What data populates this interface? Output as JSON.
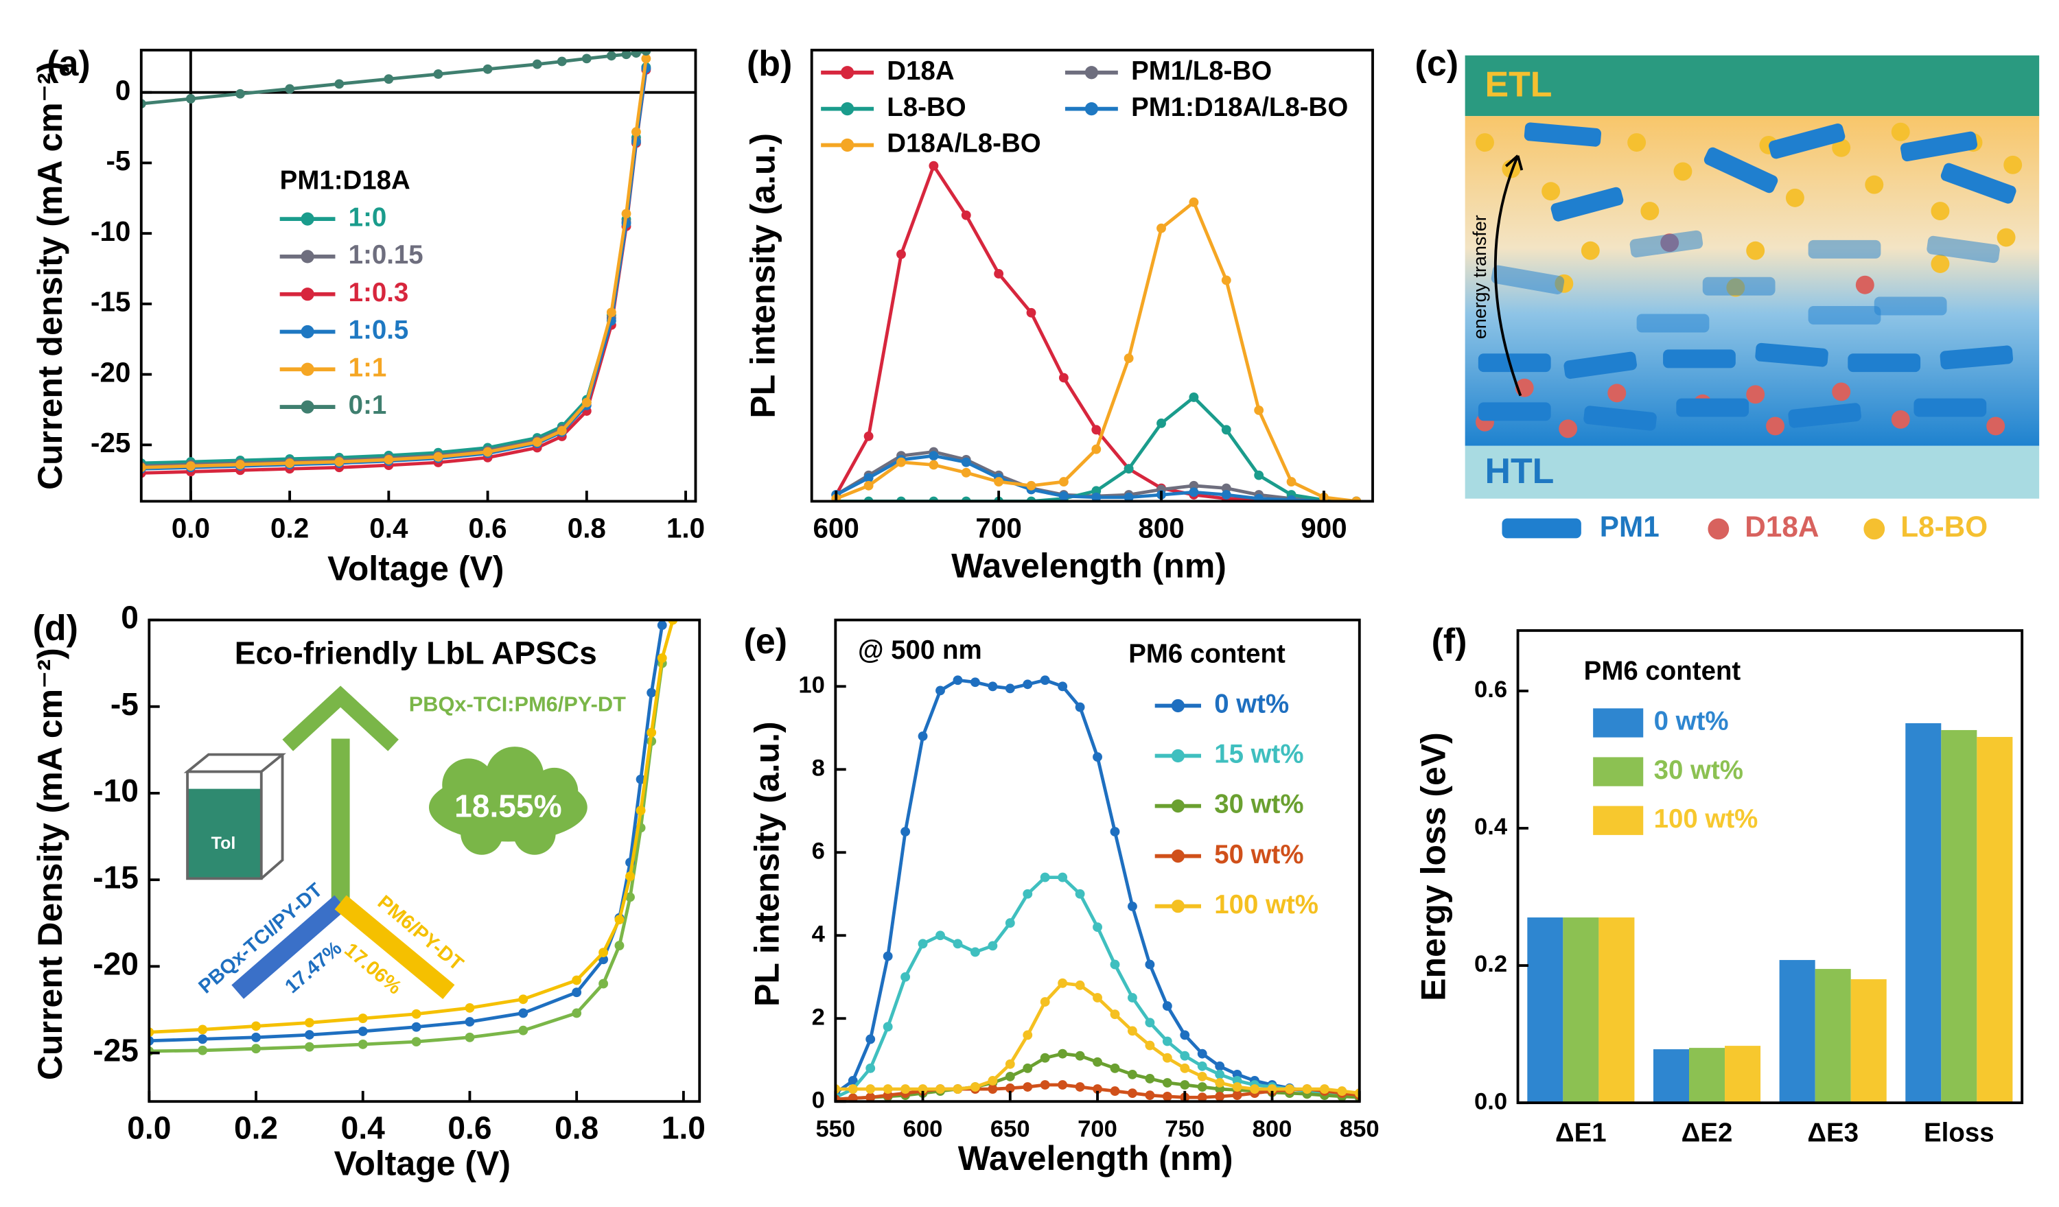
{
  "chart_data": [
    {
      "type": "line",
      "label": "(a)",
      "x_label": "Voltage (V)",
      "y_label": "Current density (mA cm⁻²)",
      "xlim": [
        -0.1,
        1.02
      ],
      "ylim": [
        -29,
        3
      ],
      "xticks": [
        {
          "value": 0,
          "label": "0.0"
        },
        0.2,
        0.4,
        0.6,
        0.8,
        {
          "value": 1,
          "label": "1.0"
        }
      ],
      "yticks": [
        0,
        -5,
        -10,
        -15,
        -20,
        -25
      ],
      "zero_lines": true,
      "legend_title": "PM1:D18A",
      "x": [
        -0.1,
        0,
        0.1,
        0.2,
        0.3,
        0.4,
        0.5,
        0.6,
        0.7,
        0.75,
        0.8,
        0.85,
        0.88,
        0.9,
        0.92
      ],
      "series": [
        {
          "name": "1:0",
          "color": "#1a9c8c",
          "values": [
            -26.3,
            -26.2,
            -26.1,
            -26.0,
            -25.9,
            -25.75,
            -25.55,
            -25.2,
            -24.5,
            -23.7,
            -21.8,
            -15.8,
            -9.0,
            -3.2,
            1.8
          ]
        },
        {
          "name": "1:0.15",
          "color": "#6e6e7e",
          "values": [
            -26.5,
            -26.4,
            -26.3,
            -26.2,
            -26.1,
            -25.95,
            -25.75,
            -25.4,
            -24.7,
            -23.9,
            -22.0,
            -16.0,
            -9.2,
            -3.4,
            1.7
          ]
        },
        {
          "name": "1:0.3",
          "color": "#d7263d",
          "values": [
            -27.0,
            -26.9,
            -26.8,
            -26.7,
            -26.6,
            -26.45,
            -26.25,
            -25.9,
            -25.2,
            -24.4,
            -22.6,
            -16.5,
            -9.5,
            -3.6,
            1.6
          ]
        },
        {
          "name": "1:0.5",
          "color": "#1e78c2",
          "values": [
            -26.7,
            -26.6,
            -26.5,
            -26.4,
            -26.3,
            -26.15,
            -25.95,
            -25.6,
            -24.9,
            -24.1,
            -22.2,
            -16.2,
            -9.3,
            -3.5,
            1.7
          ]
        },
        {
          "name": "1:1",
          "color": "#f5a623",
          "values": [
            -26.6,
            -26.5,
            -26.4,
            -26.3,
            -26.2,
            -26.05,
            -25.85,
            -25.5,
            -24.8,
            -24.0,
            -22.0,
            -15.6,
            -8.6,
            -2.8,
            2.4
          ]
        },
        {
          "name": "0:1",
          "color": "#3f7f6f",
          "values": [
            -0.8,
            -0.45,
            -0.1,
            0.25,
            0.6,
            0.95,
            1.3,
            1.65,
            2.0,
            2.2,
            2.4,
            2.6,
            2.7,
            2.8,
            2.95
          ]
        }
      ]
    },
    {
      "type": "line",
      "label": "(b)",
      "x_label": "Wavelength (nm)",
      "y_label": "PL intensity (a.u.)",
      "xlim": [
        585,
        930
      ],
      "ylim": [
        0,
        3.47
      ],
      "xticks": [
        600,
        700,
        800,
        900
      ],
      "x": [
        600,
        620,
        640,
        660,
        680,
        700,
        720,
        740,
        760,
        780,
        800,
        820,
        840,
        860,
        880,
        900,
        920
      ],
      "series": [
        {
          "name": "D18A",
          "color": "#d7263d",
          "values": [
            0.05,
            0.5,
            1.9,
            2.58,
            2.2,
            1.75,
            1.45,
            0.95,
            0.55,
            0.25,
            0.1,
            0.05,
            0.02,
            0.01,
            0,
            0,
            0
          ]
        },
        {
          "name": "PM1/L8-BO",
          "color": "#6e6e7e",
          "values": [
            0.05,
            0.2,
            0.35,
            0.38,
            0.32,
            0.2,
            0.1,
            0.05,
            0.04,
            0.05,
            0.09,
            0.12,
            0.1,
            0.05,
            0.02,
            0.01,
            0
          ]
        },
        {
          "name": "L8-BO",
          "color": "#1a9c8c",
          "values": [
            0,
            0,
            0,
            0,
            0,
            0,
            0,
            0.02,
            0.08,
            0.25,
            0.6,
            0.8,
            0.55,
            0.2,
            0.05,
            0.01,
            0
          ]
        },
        {
          "name": "PM1:D18A/L8-BO",
          "color": "#1e78c2",
          "values": [
            0.05,
            0.18,
            0.32,
            0.35,
            0.3,
            0.18,
            0.09,
            0.04,
            0.03,
            0.03,
            0.05,
            0.07,
            0.05,
            0.02,
            0.01,
            0,
            0
          ]
        },
        {
          "name": "D18A/L8-BO",
          "color": "#f5a623",
          "values": [
            0.02,
            0.12,
            0.3,
            0.28,
            0.22,
            0.15,
            0.12,
            0.15,
            0.4,
            1.1,
            2.1,
            2.3,
            1.7,
            0.7,
            0.15,
            0.03,
            0
          ]
        }
      ]
    },
    {
      "type": "line",
      "label": "(d)",
      "x_label": "Voltage (V)",
      "y_label": "Current Density (mA cm⁻²)",
      "xlim": [
        0,
        1.03
      ],
      "ylim": [
        -27.8,
        0
      ],
      "xticks": [
        {
          "value": 0,
          "label": "0.0"
        },
        0.2,
        0.4,
        0.6,
        0.8,
        {
          "value": 1,
          "label": "1.0"
        }
      ],
      "yticks": [
        0,
        -5,
        -10,
        -15,
        -20,
        -25
      ],
      "inset": {
        "title": "Eco-friendly LbL APSCs",
        "pce": [
          "18.55%",
          "17.47%",
          "17.06%"
        ],
        "solvent": "Tol"
      },
      "x": [
        0,
        0.1,
        0.2,
        0.3,
        0.4,
        0.5,
        0.6,
        0.7,
        0.8,
        0.85,
        0.88,
        0.9,
        0.92,
        0.94,
        0.96,
        0.98
      ],
      "series": [
        {
          "name": "PBQx-TCI:PM6/PY-DT",
          "color": "#7ab648",
          "values": [
            -24.9,
            -24.85,
            -24.75,
            -24.65,
            -24.5,
            -24.35,
            -24.1,
            -23.7,
            -22.7,
            -21.0,
            -18.8,
            -16.0,
            -12.0,
            -7.0,
            -2.5,
            null
          ]
        },
        {
          "name": "PBQx-TCI/PY-DT",
          "color": "#1e6fc0",
          "values": [
            -24.3,
            -24.2,
            -24.1,
            -23.95,
            -23.75,
            -23.5,
            -23.2,
            -22.7,
            -21.5,
            -19.6,
            -17.2,
            -14.0,
            -9.2,
            -4.2,
            -0.3,
            null
          ]
        },
        {
          "name": "PM6/PY-DT",
          "color": "#f5c000",
          "values": [
            -23.8,
            -23.65,
            -23.45,
            -23.25,
            -23.0,
            -22.75,
            -22.4,
            -21.9,
            -20.8,
            -19.2,
            -17.3,
            -14.8,
            -11.0,
            -6.5,
            -2.2,
            0
          ]
        }
      ]
    },
    {
      "type": "line",
      "label": "(e)",
      "x_label": "Wavelength (nm)",
      "y_label": "PL intensity (a.u.)",
      "xlim": [
        550,
        850
      ],
      "ylim": [
        0,
        11.6
      ],
      "xticks": [
        550,
        600,
        650,
        700,
        750,
        800,
        850
      ],
      "yticks": [
        0,
        2,
        4,
        6,
        8,
        10
      ],
      "legend_title": "PM6 content",
      "annotation": "@ 500 nm",
      "x": [
        550,
        560,
        570,
        580,
        590,
        600,
        610,
        620,
        630,
        640,
        650,
        660,
        670,
        680,
        690,
        700,
        710,
        720,
        730,
        740,
        750,
        760,
        770,
        780,
        790,
        800,
        810,
        820,
        830,
        840,
        850
      ],
      "series": [
        {
          "name": "0 wt%",
          "color": "#1e6fc0",
          "values": [
            0.2,
            0.5,
            1.5,
            3.5,
            6.5,
            8.8,
            9.9,
            10.15,
            10.1,
            10.0,
            9.95,
            10.05,
            10.15,
            10.0,
            9.5,
            8.3,
            6.5,
            4.7,
            3.3,
            2.3,
            1.6,
            1.15,
            0.85,
            0.65,
            0.5,
            0.4,
            0.32,
            0.25,
            0.2,
            0.15,
            0.1
          ]
        },
        {
          "name": "15 wt%",
          "color": "#3fbfbf",
          "values": [
            0.1,
            0.3,
            0.8,
            1.8,
            3.0,
            3.8,
            4.0,
            3.8,
            3.6,
            3.75,
            4.3,
            5.0,
            5.4,
            5.4,
            5.0,
            4.2,
            3.3,
            2.5,
            1.9,
            1.45,
            1.1,
            0.85,
            0.65,
            0.5,
            0.4,
            0.35,
            0.3,
            0.25,
            0.2,
            0.15,
            0.1
          ]
        },
        {
          "name": "30 wt%",
          "color": "#6aa030",
          "values": [
            0.05,
            0.08,
            0.1,
            0.12,
            0.15,
            0.2,
            0.25,
            0.3,
            0.35,
            0.45,
            0.6,
            0.8,
            1.05,
            1.15,
            1.1,
            0.95,
            0.8,
            0.65,
            0.55,
            0.45,
            0.4,
            0.35,
            0.3,
            0.28,
            0.25,
            0.22,
            0.2,
            0.18,
            0.15,
            0.12,
            0.1
          ]
        },
        {
          "name": "50 wt%",
          "color": "#d0501a",
          "values": [
            0.05,
            0.08,
            0.1,
            0.15,
            0.2,
            0.25,
            0.3,
            0.3,
            0.3,
            0.3,
            0.32,
            0.35,
            0.4,
            0.4,
            0.35,
            0.3,
            0.25,
            0.2,
            0.15,
            0.12,
            0.1,
            0.1,
            0.12,
            0.15,
            0.2,
            0.25,
            0.28,
            0.3,
            0.25,
            0.2,
            0.15
          ]
        },
        {
          "name": "100 wt%",
          "color": "#f5c020",
          "values": [
            0.3,
            0.3,
            0.3,
            0.3,
            0.3,
            0.3,
            0.3,
            0.3,
            0.35,
            0.5,
            0.9,
            1.6,
            2.4,
            2.85,
            2.8,
            2.5,
            2.1,
            1.7,
            1.35,
            1.05,
            0.8,
            0.6,
            0.45,
            0.35,
            0.3,
            0.3,
            0.3,
            0.3,
            0.3,
            0.25,
            0.2
          ]
        }
      ]
    },
    {
      "type": "bar",
      "label": "(f)",
      "y_label": "Energy loss (eV)",
      "ylim": [
        0,
        0.688
      ],
      "yticks": [
        {
          "value": 0,
          "label": "0.0"
        },
        0.2,
        0.4,
        0.6
      ],
      "legend_title": "PM6 content",
      "categories": [
        "ΔE1",
        "ΔE2",
        "ΔE3",
        "Eloss"
      ],
      "series": [
        {
          "name": "0 wt%",
          "color": "#2e86d0",
          "values": [
            0.27,
            0.078,
            0.208,
            0.553
          ]
        },
        {
          "name": "30 wt%",
          "color": "#8cc152",
          "values": [
            0.27,
            0.08,
            0.195,
            0.543
          ]
        },
        {
          "name": "100 wt%",
          "color": "#f7c82e",
          "values": [
            0.27,
            0.083,
            0.18,
            0.533
          ]
        }
      ]
    }
  ],
  "diagram": {
    "label": "(c)",
    "etl": "ETL",
    "htl": "HTL",
    "arrow_label": "energy transfer",
    "legend": [
      "PM1",
      "D18A",
      "L8-BO"
    ]
  }
}
